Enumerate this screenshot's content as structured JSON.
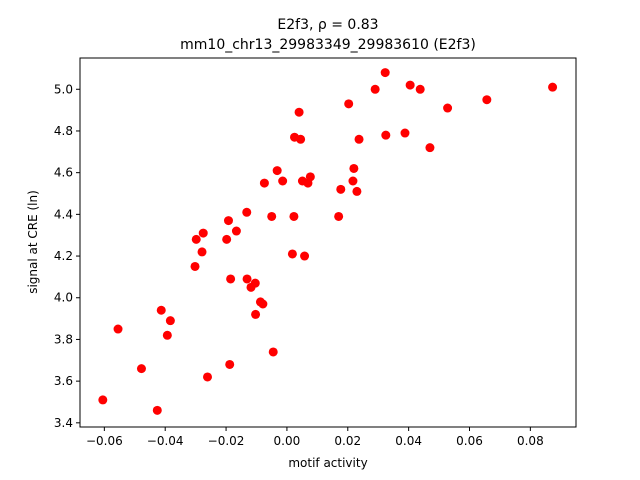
{
  "chart_data": {
    "type": "scatter",
    "title": "E2f3, ρ = 0.83",
    "subtitle": "mm10_chr13_29983349_29983610 (E2f3)",
    "xlabel": "motif activity",
    "ylabel": "signal at CRE (ln)",
    "xlim": [
      -0.068,
      0.095
    ],
    "ylim": [
      3.38,
      5.15
    ],
    "xticks": [
      -0.06,
      -0.04,
      -0.02,
      0.0,
      0.02,
      0.04,
      0.06,
      0.08
    ],
    "xtick_labels": [
      "−0.06",
      "−0.04",
      "−0.02",
      "0.00",
      "0.02",
      "0.04",
      "0.06",
      "0.08"
    ],
    "yticks": [
      3.4,
      3.6,
      3.8,
      4.0,
      4.2,
      4.4,
      4.6,
      4.8,
      5.0
    ],
    "ytick_labels": [
      "3.4",
      "3.6",
      "3.8",
      "4.0",
      "4.2",
      "4.4",
      "4.6",
      "4.8",
      "5.0"
    ],
    "grid": false,
    "marker_color": "#ff0000",
    "points": [
      {
        "x": -0.0605,
        "y": 3.51
      },
      {
        "x": -0.0555,
        "y": 3.85
      },
      {
        "x": -0.0478,
        "y": 3.66
      },
      {
        "x": -0.0426,
        "y": 3.46
      },
      {
        "x": -0.0413,
        "y": 3.94
      },
      {
        "x": -0.0393,
        "y": 3.82
      },
      {
        "x": -0.0383,
        "y": 3.89
      },
      {
        "x": -0.0302,
        "y": 4.15
      },
      {
        "x": -0.0298,
        "y": 4.28
      },
      {
        "x": -0.0279,
        "y": 4.22
      },
      {
        "x": -0.0275,
        "y": 4.31
      },
      {
        "x": -0.0261,
        "y": 3.62
      },
      {
        "x": -0.0198,
        "y": 4.28
      },
      {
        "x": -0.0192,
        "y": 4.37
      },
      {
        "x": -0.0188,
        "y": 3.68
      },
      {
        "x": -0.0185,
        "y": 4.09
      },
      {
        "x": -0.0166,
        "y": 4.32
      },
      {
        "x": -0.0132,
        "y": 4.41
      },
      {
        "x": -0.0131,
        "y": 4.09
      },
      {
        "x": -0.0118,
        "y": 4.05
      },
      {
        "x": -0.0104,
        "y": 4.07
      },
      {
        "x": -0.0103,
        "y": 3.92
      },
      {
        "x": -0.0087,
        "y": 3.98
      },
      {
        "x": -0.0079,
        "y": 3.97
      },
      {
        "x": -0.0074,
        "y": 4.55
      },
      {
        "x": -0.005,
        "y": 4.39
      },
      {
        "x": -0.0045,
        "y": 3.74
      },
      {
        "x": -0.0032,
        "y": 4.61
      },
      {
        "x": -0.0014,
        "y": 4.56
      },
      {
        "x": 0.0018,
        "y": 4.21
      },
      {
        "x": 0.0023,
        "y": 4.39
      },
      {
        "x": 0.0025,
        "y": 4.77
      },
      {
        "x": 0.004,
        "y": 4.89
      },
      {
        "x": 0.0045,
        "y": 4.76
      },
      {
        "x": 0.0051,
        "y": 4.56
      },
      {
        "x": 0.0058,
        "y": 4.2
      },
      {
        "x": 0.0069,
        "y": 4.55
      },
      {
        "x": 0.0077,
        "y": 4.58
      },
      {
        "x": 0.017,
        "y": 4.39
      },
      {
        "x": 0.0177,
        "y": 4.52
      },
      {
        "x": 0.0203,
        "y": 4.93
      },
      {
        "x": 0.0217,
        "y": 4.56
      },
      {
        "x": 0.022,
        "y": 4.62
      },
      {
        "x": 0.023,
        "y": 4.51
      },
      {
        "x": 0.0237,
        "y": 4.76
      },
      {
        "x": 0.029,
        "y": 5.0
      },
      {
        "x": 0.0323,
        "y": 5.08
      },
      {
        "x": 0.0325,
        "y": 4.78
      },
      {
        "x": 0.0388,
        "y": 4.79
      },
      {
        "x": 0.0405,
        "y": 5.02
      },
      {
        "x": 0.0438,
        "y": 5.0
      },
      {
        "x": 0.047,
        "y": 4.72
      },
      {
        "x": 0.0528,
        "y": 4.91
      },
      {
        "x": 0.0657,
        "y": 4.95
      },
      {
        "x": 0.0873,
        "y": 5.01
      }
    ]
  }
}
